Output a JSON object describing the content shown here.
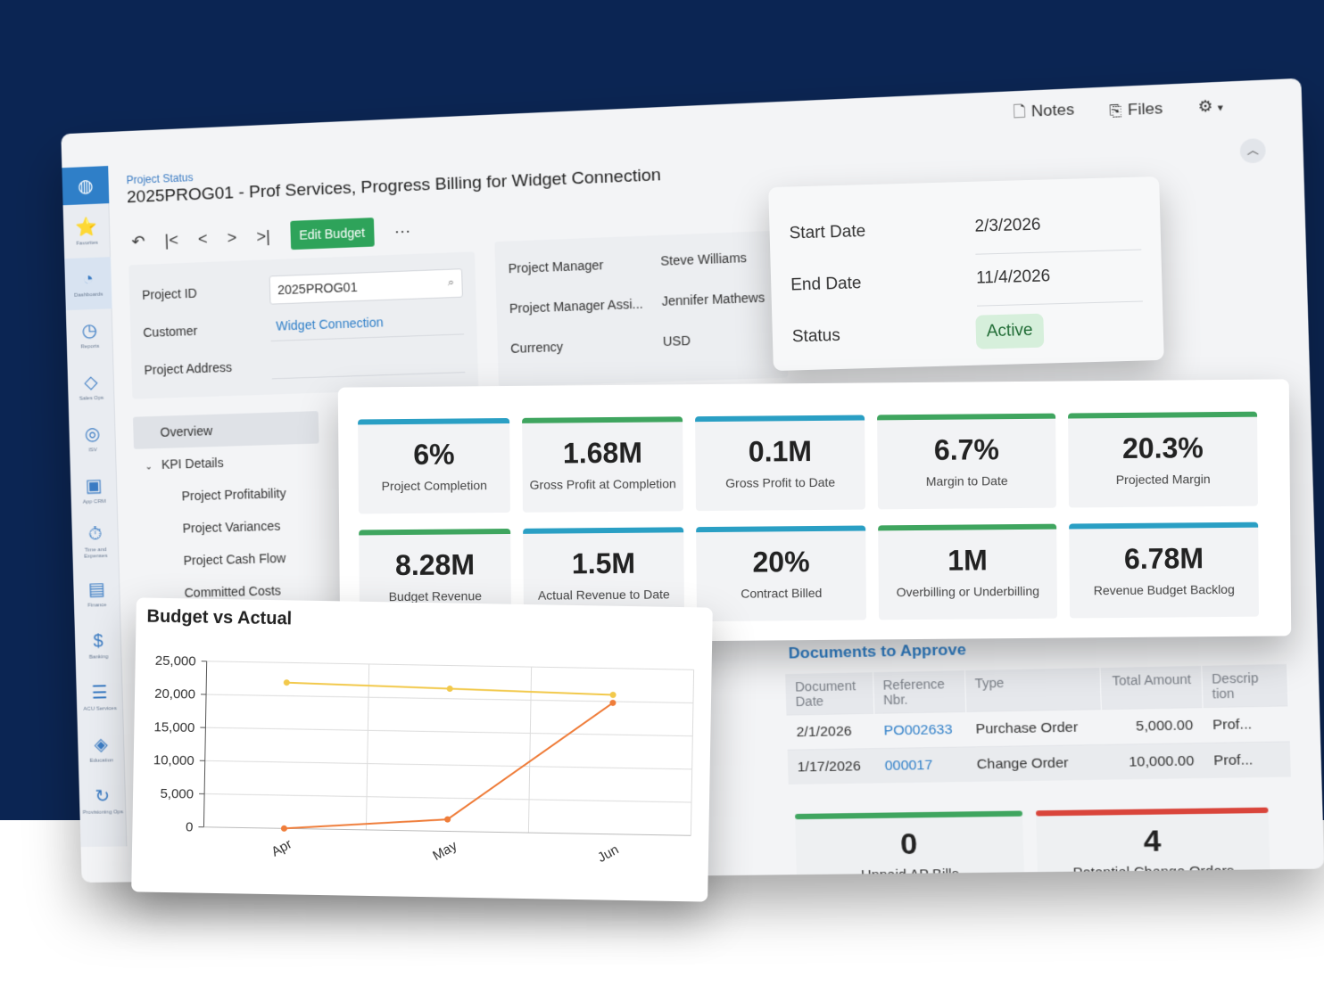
{
  "rail": {
    "items": [
      {
        "icon": "⭐",
        "label": "Favorites"
      },
      {
        "icon": "◔",
        "label": "Dashboards"
      },
      {
        "icon": "◷",
        "label": "Reports"
      },
      {
        "icon": "◇",
        "label": "Sales Ops"
      },
      {
        "icon": "◎",
        "label": "ISV"
      },
      {
        "icon": "▣",
        "label": "App CRM"
      },
      {
        "icon": "⏱",
        "label": "Time and Expenses"
      },
      {
        "icon": "▤",
        "label": "Finance"
      },
      {
        "icon": "$",
        "label": "Banking"
      },
      {
        "icon": "☰",
        "label": "ACU Services"
      },
      {
        "icon": "◈",
        "label": "Education"
      },
      {
        "icon": "↻",
        "label": "Provisioning Ops"
      }
    ]
  },
  "header": {
    "breadcrumb": "Project Status",
    "title": "2025PROG01 - Prof Services, Progress Billing for Widget Connection",
    "notes_label": "Notes",
    "files_label": "Files"
  },
  "toolbar": {
    "undo": "↶",
    "first": "|<",
    "prev": "<",
    "next": ">",
    "last": ">|",
    "edit_budget_label": "Edit Budget",
    "more": "···"
  },
  "form_left": {
    "project_id_label": "Project ID",
    "project_id_value": "2025PROG01",
    "customer_label": "Customer",
    "customer_value": "Widget Connection",
    "address_label": "Project Address"
  },
  "form_mid": {
    "pm_label": "Project Manager",
    "pm_value": "Steve Williams",
    "pma_label": "Project Manager Assi...",
    "pma_value": "Jennifer Mathews",
    "currency_label": "Currency",
    "currency_value": "USD"
  },
  "dates": {
    "start_label": "Start Date",
    "start_value": "2/3/2026",
    "end_label": "End Date",
    "end_value": "11/4/2026",
    "status_label": "Status",
    "status_value": "Active"
  },
  "nav": {
    "overview": "Overview",
    "kpi_details": "KPI Details",
    "items": [
      "Project Profitability",
      "Project Variances",
      "Project Cash Flow",
      "Committed Costs"
    ]
  },
  "colors": {
    "teal": "#2a9fc4",
    "green": "#3fa55f",
    "red": "#d9453b",
    "line_budget": "#f2c94c",
    "line_actual": "#ef7d3a"
  },
  "kpis": [
    {
      "value": "6%",
      "label": "Project Completion",
      "color": "#2a9fc4"
    },
    {
      "value": "1.68M",
      "label": "Gross Profit at Completion",
      "color": "#3fa55f"
    },
    {
      "value": "0.1M",
      "label": "Gross Profit to Date",
      "color": "#2a9fc4"
    },
    {
      "value": "6.7%",
      "label": "Margin to Date",
      "color": "#3fa55f"
    },
    {
      "value": "20.3%",
      "label": "Projected Margin",
      "color": "#3fa55f"
    },
    {
      "value": "8.28M",
      "label": "Budget Revenue",
      "color": "#3fa55f"
    },
    {
      "value": "1.5M",
      "label": "Actual Revenue to Date",
      "color": "#2a9fc4"
    },
    {
      "value": "20%",
      "label": "Contract Billed",
      "color": "#2a9fc4"
    },
    {
      "value": "1M",
      "label": "Overbilling or Underbilling",
      "color": "#3fa55f"
    },
    {
      "value": "6.78M",
      "label": "Revenue Budget Backlog",
      "color": "#2a9fc4"
    }
  ],
  "docs": {
    "title": "Documents to Approve",
    "columns": [
      "Document Date",
      "Reference Nbr.",
      "Type",
      "Total Amount",
      "Descrip tion"
    ],
    "rows": [
      {
        "date": "2/1/2026",
        "ref": "PO002633",
        "type": "Purchase Order",
        "amount": "5,000.00",
        "desc": "Prof..."
      },
      {
        "date": "1/17/2026",
        "ref": "000017",
        "type": "Change Order",
        "amount": "10,000.00",
        "desc": "Prof..."
      }
    ]
  },
  "lower_tiles": [
    {
      "value": "0",
      "label": "Unpaid AP Bills",
      "color": "#3fa55f"
    },
    {
      "value": "4",
      "label": "Potential Change Orders",
      "color": "#d9453b"
    }
  ],
  "chart_data": {
    "type": "line",
    "title": "Budget vs Actual",
    "categories": [
      "Apr",
      "May",
      "Jun"
    ],
    "series": [
      {
        "values": [
          22000,
          21500,
          21000
        ],
        "color": "#f2c94c"
      },
      {
        "values": [
          0,
          1800,
          19800
        ],
        "color": "#ef7d3a"
      }
    ],
    "ylim": [
      0,
      25000
    ],
    "yticks": [
      "0",
      "5,000",
      "10,000",
      "15,000",
      "20,000",
      "25,000"
    ],
    "grid": true
  }
}
